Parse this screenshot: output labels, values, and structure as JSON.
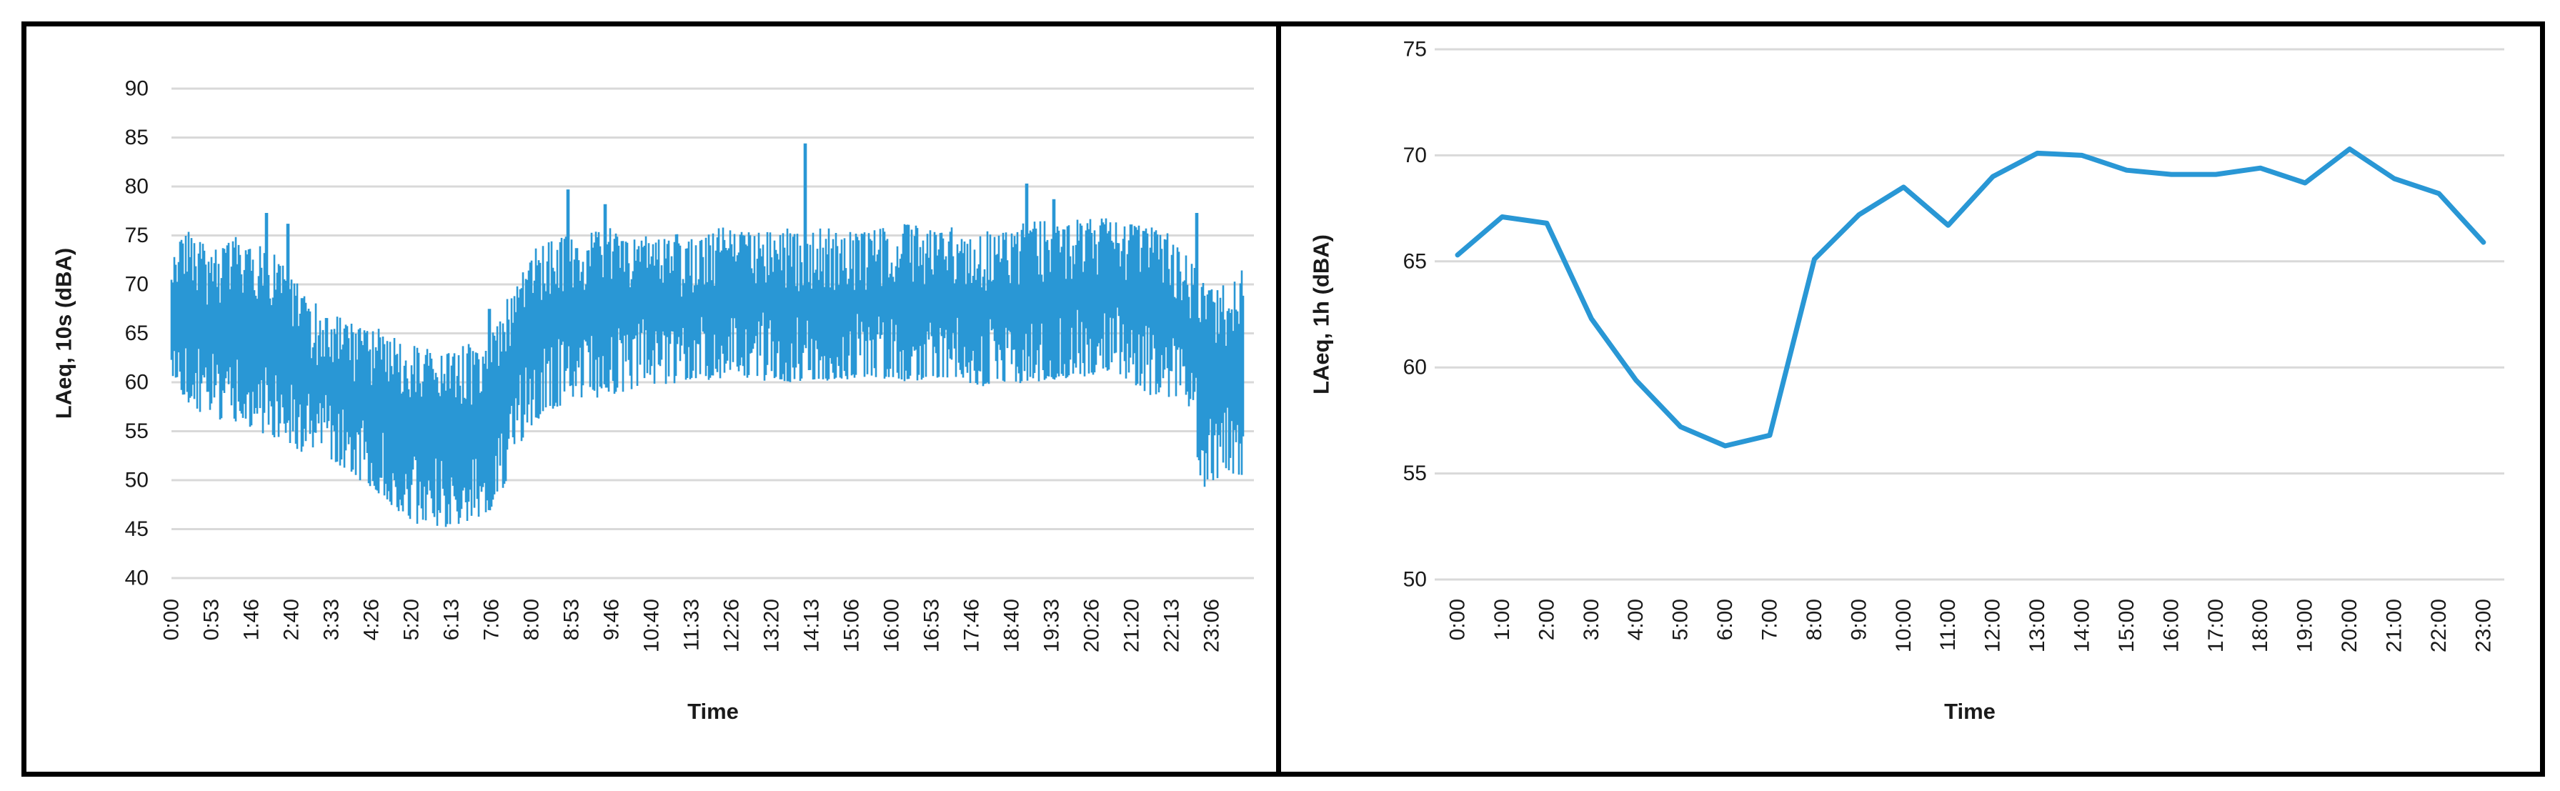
{
  "colors": {
    "line": "#2997D5",
    "grid": "#D9D9D9",
    "text": "#1a1a1a",
    "frame_border": "#000000",
    "background": "#ffffff"
  },
  "chart_data": [
    {
      "type": "line",
      "title": "",
      "xlabel": "Time",
      "ylabel": "LAeq, 10s (dBA)",
      "ylim": [
        40,
        90
      ],
      "grid": true,
      "legend": "none",
      "y_ticks": [
        "90",
        "85",
        "80",
        "75",
        "70",
        "65",
        "60",
        "55",
        "50",
        "45",
        "40"
      ],
      "y_tick_values": [
        90,
        85,
        80,
        75,
        70,
        65,
        60,
        55,
        50,
        45,
        40
      ],
      "x_ticks": [
        {
          "label": "0:00",
          "hour": 0
        },
        {
          "label": "0:53",
          "hour": 0.889
        },
        {
          "label": "1:46",
          "hour": 1.778
        },
        {
          "label": "2:40",
          "hour": 2.667
        },
        {
          "label": "3:33",
          "hour": 3.556
        },
        {
          "label": "4:26",
          "hour": 4.444
        },
        {
          "label": "5:20",
          "hour": 5.333
        },
        {
          "label": "6:13",
          "hour": 6.222
        },
        {
          "label": "7:06",
          "hour": 7.111
        },
        {
          "label": "8:00",
          "hour": 8.0
        },
        {
          "label": "8:53",
          "hour": 8.889
        },
        {
          "label": "9:46",
          "hour": 9.778
        },
        {
          "label": "10:40",
          "hour": 10.667
        },
        {
          "label": "11:33",
          "hour": 11.556
        },
        {
          "label": "12:26",
          "hour": 12.444
        },
        {
          "label": "13:20",
          "hour": 13.333
        },
        {
          "label": "14:13",
          "hour": 14.222
        },
        {
          "label": "15:06",
          "hour": 15.111
        },
        {
          "label": "16:00",
          "hour": 16.0
        },
        {
          "label": "16:53",
          "hour": 16.889
        },
        {
          "label": "17:46",
          "hour": 17.778
        },
        {
          "label": "18:40",
          "hour": 18.667
        },
        {
          "label": "19:33",
          "hour": 19.556
        },
        {
          "label": "20:26",
          "hour": 20.444
        },
        {
          "label": "21:20",
          "hour": 21.333
        },
        {
          "label": "22:13",
          "hour": 22.222
        },
        {
          "label": "23:06",
          "hour": 23.111
        }
      ],
      "series": [
        {
          "name": "LAeq 10 s",
          "sampling_seconds": 10,
          "hours_span": [
            0,
            23.82
          ],
          "band_envelope_t_top_bottom": [
            [
              0,
              73,
              60.5
            ],
            [
              0.35,
              75.5,
              58
            ],
            [
              0.9,
              73.5,
              56
            ],
            [
              1.4,
              74.5,
              55.5
            ],
            [
              1.9,
              73.5,
              55
            ],
            [
              2.15,
              73.5,
              54.5
            ],
            [
              2.45,
              72.5,
              54
            ],
            [
              3.0,
              68,
              52.5
            ],
            [
              3.6,
              67,
              52
            ],
            [
              4.3,
              65.5,
              49.5
            ],
            [
              5.0,
              64.5,
              47
            ],
            [
              5.5,
              63,
              45.3
            ],
            [
              6.3,
              63,
              45.2
            ],
            [
              6.9,
              64,
              46
            ],
            [
              7.3,
              66.5,
              48
            ],
            [
              7.7,
              70.5,
              53.5
            ],
            [
              8.2,
              74,
              56.5
            ],
            [
              8.8,
              75,
              58
            ],
            [
              9.6,
              75.5,
              58.5
            ],
            [
              10.5,
              74.5,
              59.5
            ],
            [
              11.5,
              74.8,
              60
            ],
            [
              12.5,
              75.6,
              60.5
            ],
            [
              13.5,
              75.3,
              60
            ],
            [
              14.5,
              75.3,
              60
            ],
            [
              15.5,
              75.4,
              60.5
            ],
            [
              16.3,
              76.3,
              60
            ],
            [
              17.2,
              75.5,
              60.5
            ],
            [
              18.1,
              75,
              59.5
            ],
            [
              19.1,
              76,
              60
            ],
            [
              20.1,
              76.2,
              60.5
            ],
            [
              21.0,
              76.4,
              61
            ],
            [
              21.8,
              75.8,
              58.5
            ],
            [
              22.4,
              74,
              58.5
            ],
            [
              22.7,
              72,
              57
            ],
            [
              22.85,
              70.5,
              49.2
            ],
            [
              23.1,
              69.5,
              49.5
            ],
            [
              23.4,
              69.5,
              51
            ],
            [
              23.65,
              71.1,
              50.3
            ],
            [
              23.82,
              71,
              50.5
            ]
          ],
          "peak_spikes_t_value": [
            [
              2.1,
              77.3
            ],
            [
              2.6,
              76.2
            ],
            [
              7.05,
              67.5
            ],
            [
              8.8,
              79.7
            ],
            [
              9.65,
              78.2
            ],
            [
              14.08,
              84.4
            ],
            [
              19.0,
              80.3
            ],
            [
              19.6,
              78.7
            ],
            [
              22.78,
              77.3
            ]
          ],
          "noise_seed": 42
        }
      ]
    },
    {
      "type": "line",
      "title": "",
      "xlabel": "Time",
      "ylabel": "LAeq, 1h (dBA)",
      "ylim": [
        50,
        75
      ],
      "grid": true,
      "legend": "none",
      "y_ticks": [
        "75",
        "70",
        "65",
        "60",
        "55",
        "50"
      ],
      "y_tick_values": [
        75,
        70,
        65,
        60,
        55,
        50
      ],
      "categories": [
        "0:00",
        "1:00",
        "2:00",
        "3:00",
        "4:00",
        "5:00",
        "6:00",
        "7:00",
        "8:00",
        "9:00",
        "10:00",
        "11:00",
        "12:00",
        "13:00",
        "14:00",
        "15:00",
        "16:00",
        "17:00",
        "18:00",
        "19:00",
        "20:00",
        "21:00",
        "22:00",
        "23:00"
      ],
      "values": [
        65.3,
        67.1,
        66.8,
        62.3,
        59.4,
        57.2,
        56.3,
        56.8,
        65.1,
        67.2,
        68.5,
        66.7,
        69.0,
        70.1,
        70.0,
        69.3,
        69.1,
        69.1,
        69.4,
        68.7,
        70.3,
        68.9,
        68.2,
        65.9
      ]
    }
  ]
}
